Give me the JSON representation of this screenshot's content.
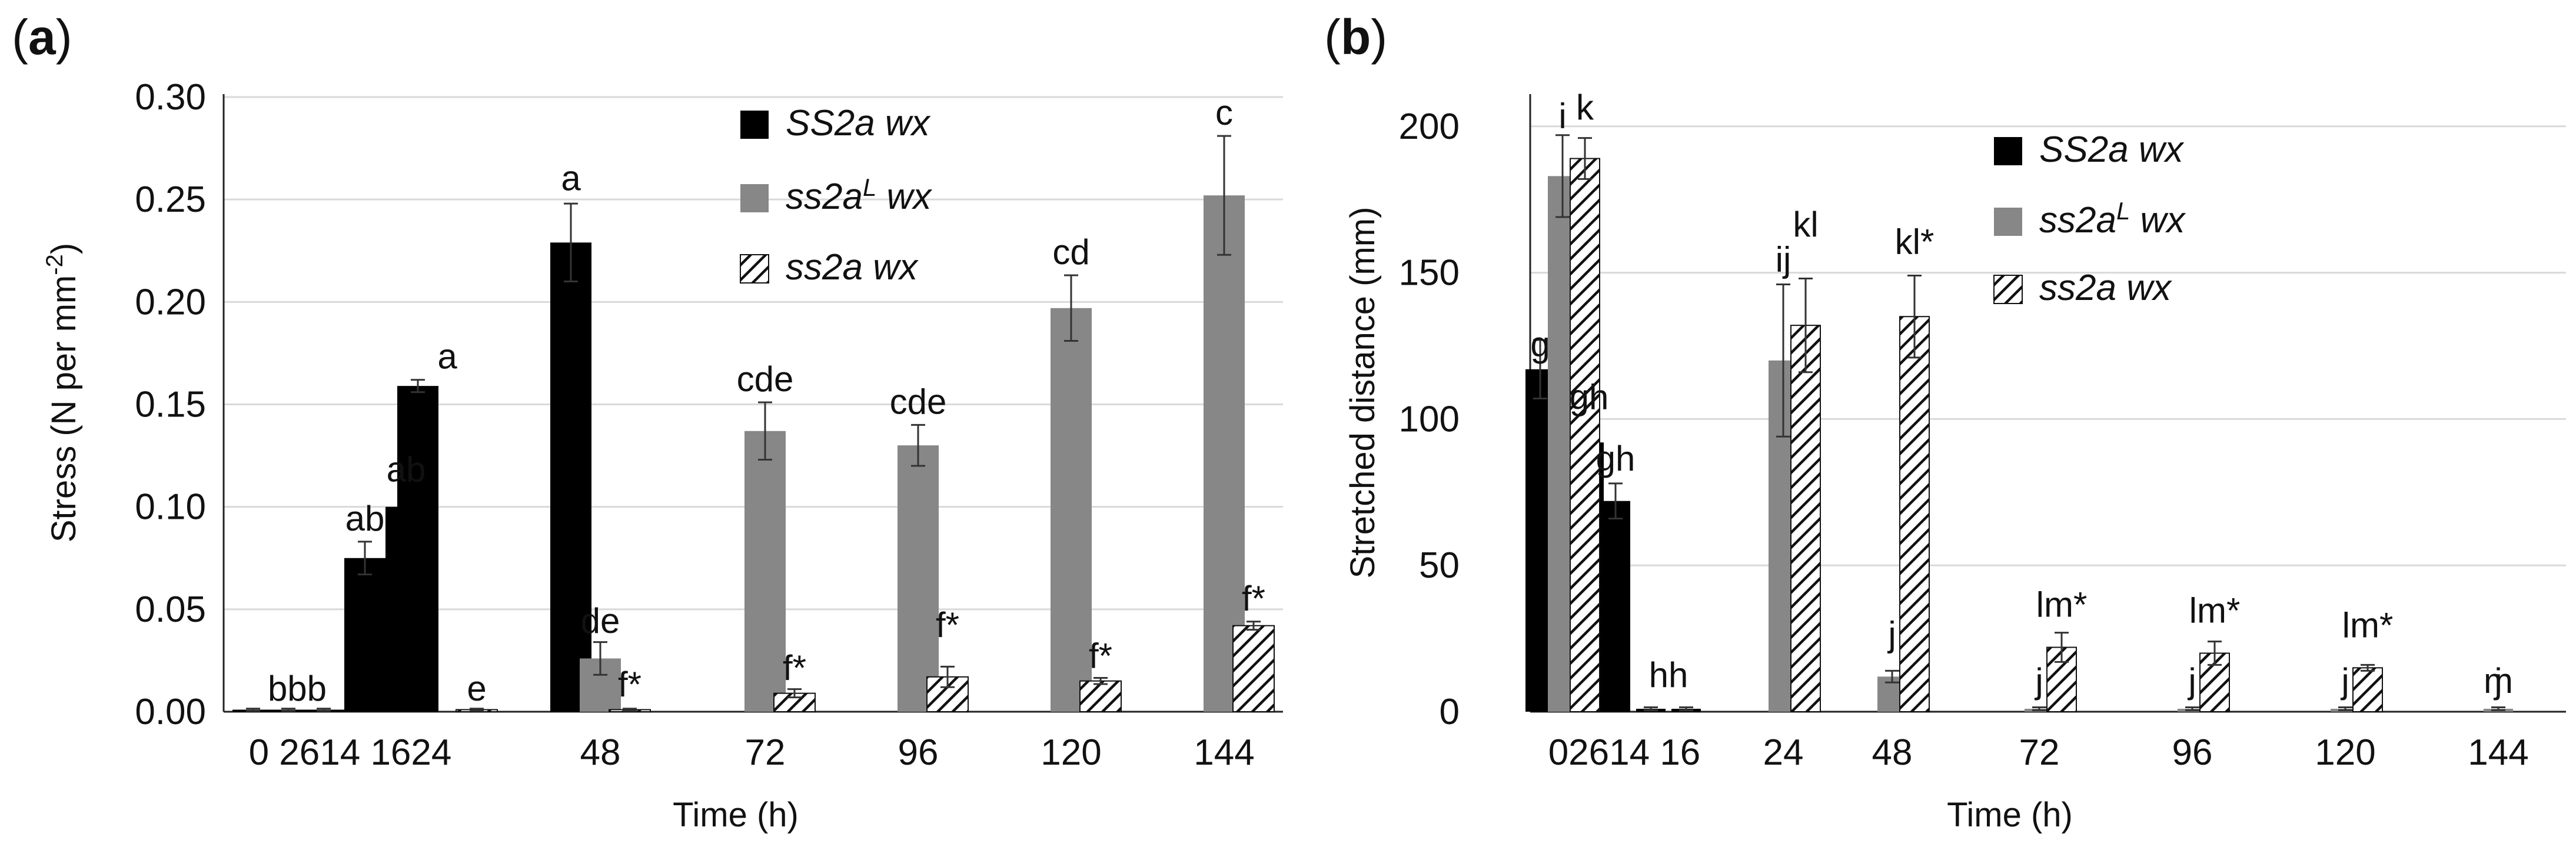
{
  "colors": {
    "series_black": "#000000",
    "series_gray": "#878787",
    "hatch_fg": "#111111",
    "grid": "#d9d9d9",
    "axis": "#222222"
  },
  "chart_data": [
    {
      "panel_label": "a",
      "type": "bar",
      "xlabel": "Time (h)",
      "ylabel": "Stress (N per mm",
      "ylabel_sup": "-2",
      "ylabel_close": ")",
      "ylim": [
        0,
        0.3
      ],
      "yticks": [
        0,
        0.05,
        0.1,
        0.15,
        0.2,
        0.25,
        0.3
      ],
      "ytick_labels": [
        "0.00",
        "0.05",
        "0.10",
        "0.15",
        "0.20",
        "0.25",
        "0.30"
      ],
      "grid": true,
      "legend_position": "top-right",
      "legend": [
        {
          "key": "SS2a",
          "label": "SS2a wx",
          "pattern": "solid-black"
        },
        {
          "key": "ss2aL",
          "label_base": "ss2a",
          "label_sup": "L",
          "label_tail": " wx",
          "pattern": "solid-gray"
        },
        {
          "key": "ss2a",
          "label": "ss2a wx",
          "pattern": "hatched"
        }
      ],
      "categories": [
        "0",
        "2",
        "6",
        "14",
        "16",
        "24",
        "48",
        "72",
        "96",
        "120",
        "144"
      ],
      "category_label_groups": [
        {
          "text": "0 2614 1624",
          "categories": [
            0,
            5
          ]
        },
        {
          "text": "48",
          "categories": [
            6,
            6
          ]
        },
        {
          "text": "72",
          "categories": [
            7,
            7
          ]
        },
        {
          "text": "96",
          "categories": [
            8,
            8
          ]
        },
        {
          "text": "120",
          "categories": [
            9,
            9
          ]
        },
        {
          "text": "144",
          "categories": [
            10,
            10
          ]
        }
      ],
      "series": [
        {
          "key": "SS2a",
          "name": "SS2a wx",
          "values": [
            0.001,
            0.001,
            0.001,
            0.075,
            0.1,
            0.159,
            0.229,
            null,
            null,
            null,
            null
          ],
          "errors": [
            0.0005,
            0.0005,
            0.0005,
            0.008,
            0.007,
            0.003,
            0.019,
            null,
            null,
            null,
            null
          ]
        },
        {
          "key": "ss2aL",
          "name": "ss2aL wx",
          "values": [
            null,
            null,
            null,
            null,
            null,
            null,
            0.026,
            0.137,
            0.13,
            0.197,
            0.252
          ],
          "errors": [
            null,
            null,
            null,
            null,
            null,
            null,
            0.008,
            0.014,
            0.01,
            0.016,
            0.029
          ]
        },
        {
          "key": "ss2a",
          "name": "ss2a wx",
          "values": [
            null,
            null,
            null,
            null,
            null,
            0.001,
            0.001,
            0.009,
            0.017,
            0.015,
            0.042
          ],
          "errors": [
            null,
            null,
            null,
            null,
            null,
            0.0005,
            0.0005,
            0.002,
            0.005,
            0.0015,
            0.002
          ]
        }
      ],
      "annotations": [
        {
          "text": "bbb",
          "category": 1,
          "value": 0.002
        },
        {
          "text": "ab",
          "category": 3,
          "value": 0.085
        },
        {
          "text": "ab",
          "category": 4,
          "value": 0.109
        },
        {
          "text": "a",
          "category": 5,
          "value": 0.164
        },
        {
          "text": "e",
          "category": 5,
          "value": 0.002,
          "series": "ss2a"
        },
        {
          "text": "a",
          "category": 6,
          "value": 0.251,
          "series": "SS2a"
        },
        {
          "text": "de",
          "category": 6,
          "value": 0.035,
          "series": "ss2aL"
        },
        {
          "text": "f*",
          "category": 6,
          "value": 0.004,
          "series": "ss2a"
        },
        {
          "text": "cde",
          "category": 7,
          "value": 0.153
        },
        {
          "text": "f*",
          "category": 7,
          "value": 0.012,
          "series": "ss2a"
        },
        {
          "text": "cde",
          "category": 8,
          "value": 0.142
        },
        {
          "text": "f*",
          "category": 8,
          "value": 0.033,
          "series": "ss2a"
        },
        {
          "text": "cd",
          "category": 9,
          "value": 0.215
        },
        {
          "text": "f*",
          "category": 9,
          "value": 0.018,
          "series": "ss2a"
        },
        {
          "text": "c",
          "category": 10,
          "value": 0.283
        },
        {
          "text": "f*",
          "category": 10,
          "value": 0.046,
          "series": "ss2a"
        }
      ]
    },
    {
      "panel_label": "b",
      "type": "bar",
      "xlabel": "Time (h)",
      "ylabel": "Stretched distance (mm)",
      "ylim": [
        0,
        210
      ],
      "yticks": [
        0,
        50,
        100,
        150,
        200
      ],
      "ytick_labels": [
        "0",
        "50",
        "100",
        "150",
        "200"
      ],
      "grid": true,
      "legend_position": "top-right",
      "legend": [
        {
          "key": "SS2a",
          "label": "SS2a wx",
          "pattern": "solid-black"
        },
        {
          "key": "ss2aL",
          "label_base": "ss2a",
          "label_sup": "L",
          "label_tail": " wx",
          "pattern": "solid-gray"
        },
        {
          "key": "ss2a",
          "label": "ss2a wx",
          "pattern": "hatched"
        }
      ],
      "categories": [
        "0",
        "2",
        "6",
        "14",
        "16",
        "24",
        "48",
        "72",
        "96",
        "120",
        "144"
      ],
      "category_label_groups": [
        {
          "text": "02614 16",
          "categories": [
            0,
            4
          ]
        },
        {
          "text": "24",
          "categories": [
            5,
            5
          ]
        },
        {
          "text": "48",
          "categories": [
            6,
            6
          ]
        },
        {
          "text": "72",
          "categories": [
            7,
            7
          ]
        },
        {
          "text": "96",
          "categories": [
            8,
            8
          ]
        },
        {
          "text": "120",
          "categories": [
            9,
            9
          ]
        },
        {
          "text": "144",
          "categories": [
            10,
            10
          ]
        }
      ],
      "series": [
        {
          "key": "SS2a",
          "name": "SS2a wx",
          "values": [
            117,
            92,
            72,
            1,
            1,
            null,
            null,
            null,
            null,
            null,
            null
          ],
          "errors": [
            10,
            8,
            6,
            0.5,
            0.5,
            null,
            null,
            null,
            null,
            null,
            null
          ]
        },
        {
          "key": "ss2aL",
          "name": "ss2aL wx",
          "values": [
            183,
            null,
            null,
            null,
            null,
            120,
            12,
            1,
            1,
            1,
            1
          ],
          "errors": [
            14,
            null,
            null,
            null,
            null,
            26,
            2,
            0.5,
            0.5,
            0.5,
            0.5
          ]
        },
        {
          "key": "ss2a",
          "name": "ss2a wx",
          "values": [
            189,
            null,
            null,
            null,
            null,
            132,
            135,
            22,
            20,
            15,
            null
          ],
          "errors": [
            7,
            null,
            null,
            null,
            null,
            16,
            14,
            5,
            4,
            1,
            null
          ]
        }
      ],
      "annotations": [
        {
          "text": "i",
          "category": 0,
          "value": 197,
          "series": "ss2aL"
        },
        {
          "text": "k",
          "category": 0,
          "value": 200,
          "series": "ss2a"
        },
        {
          "text": "g",
          "category": 0,
          "value": 119,
          "series": "SS2a"
        },
        {
          "text": "gh",
          "category": 1,
          "value": 101
        },
        {
          "text": "gh",
          "category": 2,
          "value": 80
        },
        {
          "text": "hh",
          "category": 3,
          "value": 6
        },
        {
          "text": "ij",
          "category": 5,
          "value": 148,
          "series": "ss2aL"
        },
        {
          "text": "kl",
          "category": 5,
          "value": 160,
          "series": "ss2a"
        },
        {
          "text": "j",
          "category": 6,
          "value": 20,
          "series": "ss2aL"
        },
        {
          "text": "kl*",
          "category": 6,
          "value": 154,
          "series": "ss2a"
        },
        {
          "text": "j",
          "category": 7,
          "value": 4,
          "series": "ss2aL"
        },
        {
          "text": "lm*",
          "category": 7,
          "value": 30,
          "series": "ss2a"
        },
        {
          "text": "j",
          "category": 8,
          "value": 4,
          "series": "ss2aL"
        },
        {
          "text": "lm*",
          "category": 8,
          "value": 28,
          "series": "ss2a"
        },
        {
          "text": "j",
          "category": 9,
          "value": 4,
          "series": "ss2aL"
        },
        {
          "text": "lm*",
          "category": 9,
          "value": 23,
          "series": "ss2a"
        },
        {
          "text": "j",
          "category": 10,
          "value": 4,
          "series": "ss2aL"
        },
        {
          "text": "m",
          "category": 10,
          "value": 4,
          "series": "ss2a"
        }
      ]
    }
  ]
}
